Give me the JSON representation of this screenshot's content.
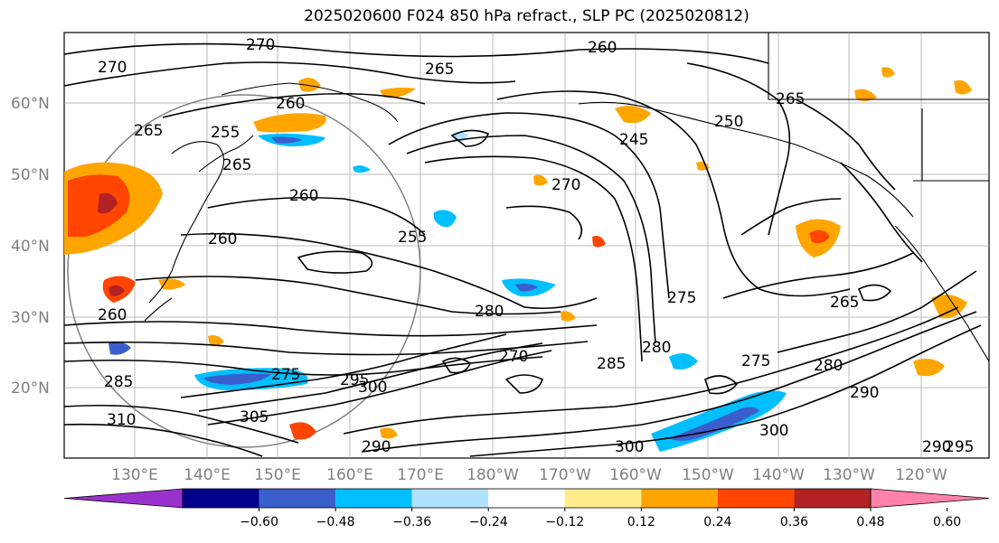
{
  "title": "2025020600 F024 850 hPa refract., SLP PC (2025020812)",
  "map": {
    "lat_labels": [
      "60°N",
      "50°N",
      "40°N",
      "30°N",
      "20°N"
    ],
    "lon_labels": [
      "130°E",
      "140°E",
      "150°E",
      "160°E",
      "170°E",
      "180°W",
      "170°W",
      "160°W",
      "150°W",
      "140°W",
      "130°W",
      "120°W"
    ],
    "contour_labels": [
      "270",
      "260",
      "265",
      "270",
      "265",
      "260",
      "255",
      "250",
      "245",
      "265",
      "260",
      "270",
      "255",
      "260",
      "265",
      "270",
      "275",
      "280",
      "285",
      "290",
      "295",
      "300",
      "305",
      "310",
      "260",
      "265",
      "275",
      "275",
      "280",
      "290",
      "300",
      "300",
      "295",
      "290",
      "285",
      "280"
    ]
  },
  "colorbar": {
    "tick_labels": [
      "−0.60",
      "−0.48",
      "−0.36",
      "−0.24",
      "−0.12",
      "0.12",
      "0.24",
      "0.36",
      "0.48",
      "0.60"
    ],
    "colors": [
      "#9932cc",
      "#00008b",
      "#3a5fcd",
      "#00bfff",
      "#b0e2ff",
      "#ffffff",
      "#ffec8b",
      "#ffa500",
      "#ff4500",
      "#b22222",
      "#ff82ab"
    ]
  }
}
